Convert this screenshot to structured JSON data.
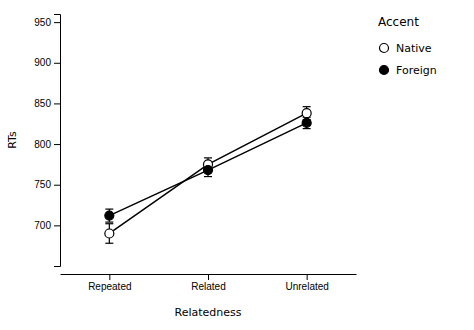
{
  "chart_data": {
    "type": "line",
    "categories": [
      "Repeated",
      "Related",
      "Unrelated"
    ],
    "xlabel": "Relatedness",
    "ylabel": "RTs",
    "legend_title": "Accent",
    "legend": "right",
    "series": [
      {
        "name": "Native",
        "color": "black",
        "marker": "open-circle",
        "values": [
          690,
          775,
          838
        ],
        "errors": [
          12,
          8,
          8
        ]
      },
      {
        "name": "Foreign",
        "color": "black",
        "marker": "filled-circle",
        "values": [
          712,
          768,
          826
        ],
        "errors": [
          8,
          8,
          7
        ]
      }
    ],
    "ylim": [
      650,
      960
    ],
    "yticks": [
      700,
      750,
      800,
      850,
      900,
      950
    ]
  }
}
